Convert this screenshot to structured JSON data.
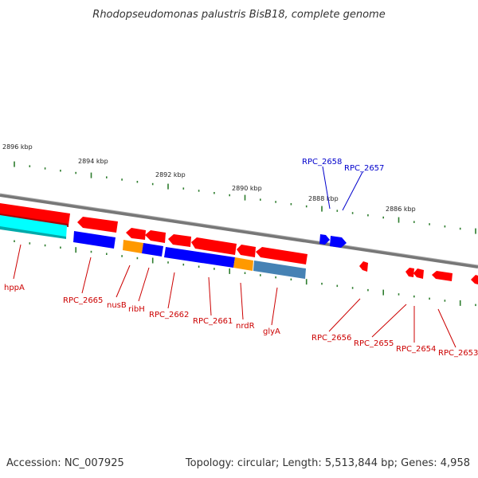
{
  "title": "Rhodopseudomonas palustris BisB18, complete genome",
  "footer": {
    "accession": "Accession: NC_007925",
    "summary": "Topology: circular; Length: 5,513,844 bp; Genes: 4,958"
  },
  "colors": {
    "backbone": "#888888",
    "tick": "#2e7d2e",
    "forward_gene": "#ff0000",
    "reverse_gene": "#0000ff",
    "rna": "#00ffff",
    "orange": "#ff9900",
    "steel": "#4682b4",
    "label_forward": "#cc0000",
    "label_reverse": "#0000cc"
  },
  "scale_labels": [
    "2896 kbp",
    "2894 kbp",
    "2892 kbp",
    "2890 kbp",
    "2888 kbp",
    "2886 kbp"
  ],
  "gene_labels": [
    "RPC_2658",
    "RPC_2657",
    "hppA",
    "RPC_2665",
    "nusB",
    "ribH",
    "RPC_2662",
    "RPC_2661",
    "nrdR",
    "glyA",
    "RPC_2656",
    "RPC_2655",
    "RPC_2654",
    "RPC_2653"
  ]
}
